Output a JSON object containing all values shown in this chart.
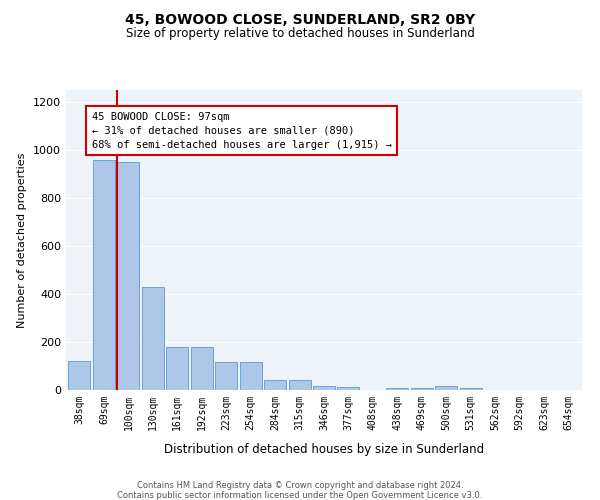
{
  "title1": "45, BOWOOD CLOSE, SUNDERLAND, SR2 0BY",
  "title2": "Size of property relative to detached houses in Sunderland",
  "xlabel": "Distribution of detached houses by size in Sunderland",
  "ylabel": "Number of detached properties",
  "categories": [
    "38sqm",
    "69sqm",
    "100sqm",
    "130sqm",
    "161sqm",
    "192sqm",
    "223sqm",
    "254sqm",
    "284sqm",
    "315sqm",
    "346sqm",
    "377sqm",
    "408sqm",
    "438sqm",
    "469sqm",
    "500sqm",
    "531sqm",
    "562sqm",
    "592sqm",
    "623sqm",
    "654sqm"
  ],
  "values": [
    120,
    960,
    950,
    430,
    180,
    180,
    115,
    115,
    40,
    40,
    15,
    12,
    2,
    10,
    10,
    15,
    8,
    2,
    2,
    1,
    2
  ],
  "bar_color": "#aec6e8",
  "bar_edge_color": "#5b9bd5",
  "red_line_x": 2,
  "red_line_color": "#cc0000",
  "annotation_text": "45 BOWOOD CLOSE: 97sqm\n← 31% of detached houses are smaller (890)\n68% of semi-detached houses are larger (1,915) →",
  "annotation_box_color": "#ffffff",
  "annotation_box_edge_color": "#cc0000",
  "ylim": [
    0,
    1250
  ],
  "yticks": [
    0,
    200,
    400,
    600,
    800,
    1000,
    1200
  ],
  "footer1": "Contains HM Land Registry data © Crown copyright and database right 2024.",
  "footer2": "Contains public sector information licensed under the Open Government Licence v3.0.",
  "bg_color": "#eef2f9"
}
